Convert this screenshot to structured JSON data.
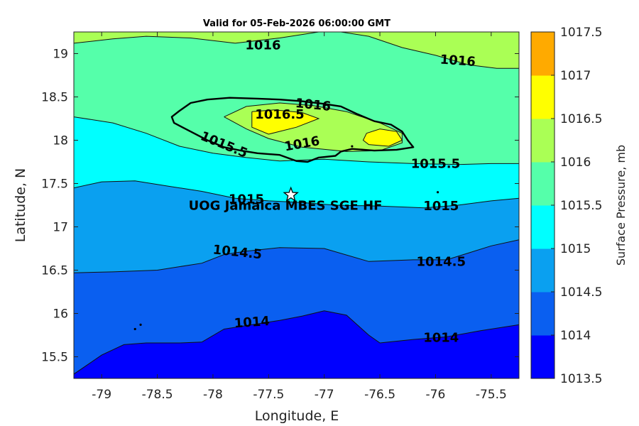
{
  "chart_data": {
    "type": "contour-map",
    "title": "Valid for 05-Feb-2026 06:00:00 GMT",
    "xlabel": "Longitude, E",
    "ylabel": "Latitude, N",
    "colorbar_label": "Surface Pressure, mb",
    "xlim": [
      -79.25,
      -75.25
    ],
    "ylim": [
      15.25,
      19.25
    ],
    "xticks": [
      -79,
      -78.5,
      -78,
      -77.5,
      -77,
      -76.5,
      -76,
      -75.5
    ],
    "yticks": [
      15.5,
      16,
      16.5,
      17,
      17.5,
      18,
      18.5,
      19
    ],
    "levels": [
      1013.5,
      1014,
      1014.5,
      1015,
      1015.5,
      1016,
      1016.5,
      1017,
      1017.5
    ],
    "level_colors": [
      "#0000ff",
      "#0a5ff0",
      "#0aa0f0",
      "#00ffff",
      "#55ffaa",
      "#aaff55",
      "#ffff00",
      "#ffaa00",
      "#ff5500"
    ],
    "contours": [
      {
        "level": 1014,
        "points": [
          [
            -79.25,
            15.3
          ],
          [
            -79.0,
            15.52
          ],
          [
            -78.8,
            15.64
          ],
          [
            -78.6,
            15.66
          ],
          [
            -78.3,
            15.66
          ],
          [
            -78.1,
            15.67
          ],
          [
            -77.9,
            15.82
          ],
          [
            -77.6,
            15.88
          ],
          [
            -77.4,
            15.92
          ],
          [
            -77.2,
            15.97
          ],
          [
            -77.0,
            16.03
          ],
          [
            -76.8,
            15.98
          ],
          [
            -76.6,
            15.75
          ],
          [
            -76.5,
            15.66
          ],
          [
            -76.2,
            15.7
          ],
          [
            -75.9,
            15.73
          ],
          [
            -75.6,
            15.8
          ],
          [
            -75.25,
            15.87
          ]
        ]
      },
      {
        "level": 1014.5,
        "points": [
          [
            -79.25,
            16.47
          ],
          [
            -78.9,
            16.48
          ],
          [
            -78.5,
            16.5
          ],
          [
            -78.1,
            16.58
          ],
          [
            -77.9,
            16.68
          ],
          [
            -77.7,
            16.72
          ],
          [
            -77.4,
            16.76
          ],
          [
            -77.0,
            16.75
          ],
          [
            -76.6,
            16.6
          ],
          [
            -76.2,
            16.62
          ],
          [
            -75.9,
            16.62
          ],
          [
            -75.7,
            16.7
          ],
          [
            -75.5,
            16.78
          ],
          [
            -75.25,
            16.85
          ]
        ]
      },
      {
        "level": 1015,
        "points": [
          [
            -79.25,
            17.45
          ],
          [
            -79.0,
            17.52
          ],
          [
            -78.7,
            17.53
          ],
          [
            -78.4,
            17.47
          ],
          [
            -78.1,
            17.41
          ],
          [
            -77.8,
            17.33
          ],
          [
            -77.5,
            17.3
          ],
          [
            -77.2,
            17.28
          ],
          [
            -76.9,
            17.25
          ],
          [
            -76.5,
            17.24
          ],
          [
            -76.1,
            17.22
          ],
          [
            -75.8,
            17.25
          ],
          [
            -75.5,
            17.3
          ],
          [
            -75.25,
            17.33
          ]
        ]
      },
      {
        "level": 1015.5,
        "points": [
          [
            -79.25,
            18.27
          ],
          [
            -78.9,
            18.2
          ],
          [
            -78.6,
            18.08
          ],
          [
            -78.3,
            17.93
          ],
          [
            -78.0,
            17.85
          ],
          [
            -77.7,
            17.8
          ],
          [
            -77.4,
            17.76
          ],
          [
            -77.0,
            17.78
          ],
          [
            -76.6,
            17.75
          ],
          [
            -76.2,
            17.73
          ],
          [
            -75.8,
            17.72
          ],
          [
            -75.5,
            17.73
          ],
          [
            -75.25,
            17.73
          ]
        ]
      },
      {
        "level": 1016,
        "points": [
          [
            -79.25,
            19.12
          ],
          [
            -78.9,
            19.17
          ],
          [
            -78.6,
            19.2
          ],
          [
            -78.2,
            19.18
          ],
          [
            -77.8,
            19.12
          ],
          [
            -77.4,
            19.18
          ],
          [
            -77.05,
            19.25
          ]
        ]
      },
      {
        "level": 1016,
        "points": [
          [
            -76.85,
            19.25
          ],
          [
            -76.6,
            19.2
          ],
          [
            -76.3,
            19.07
          ],
          [
            -76.0,
            18.98
          ],
          [
            -75.7,
            18.87
          ],
          [
            -75.45,
            18.83
          ],
          [
            -75.25,
            18.83
          ]
        ]
      },
      {
        "level": 1016,
        "points": [
          [
            -77.9,
            18.27
          ],
          [
            -77.7,
            18.39
          ],
          [
            -77.4,
            18.43
          ],
          [
            -77.1,
            18.4
          ],
          [
            -76.8,
            18.33
          ],
          [
            -76.5,
            18.2
          ],
          [
            -76.3,
            18.08
          ],
          [
            -76.3,
            17.97
          ],
          [
            -76.5,
            17.88
          ],
          [
            -76.8,
            17.87
          ],
          [
            -77.2,
            17.92
          ],
          [
            -77.5,
            18.02
          ],
          [
            -77.7,
            18.13
          ],
          [
            -77.9,
            18.27
          ]
        ]
      },
      {
        "level": 1016.5,
        "points": [
          [
            -77.65,
            18.33
          ],
          [
            -77.45,
            18.35
          ],
          [
            -77.2,
            18.32
          ],
          [
            -77.05,
            18.25
          ],
          [
            -77.25,
            18.15
          ],
          [
            -77.5,
            18.07
          ],
          [
            -77.65,
            18.15
          ],
          [
            -77.65,
            18.33
          ]
        ]
      },
      {
        "level": 1016.5,
        "points": [
          [
            -76.62,
            18.08
          ],
          [
            -76.5,
            18.13
          ],
          [
            -76.35,
            18.1
          ],
          [
            -76.3,
            18.0
          ],
          [
            -76.42,
            17.93
          ],
          [
            -76.6,
            17.95
          ],
          [
            -76.65,
            18.0
          ],
          [
            -76.62,
            18.08
          ]
        ]
      }
    ],
    "contour_labels": [
      {
        "text": "1016",
        "x": -77.55,
        "y": 19.1,
        "angle": 0
      },
      {
        "text": "1016",
        "x": -75.8,
        "y": 18.92,
        "angle": 4
      },
      {
        "text": "1016",
        "x": -77.1,
        "y": 18.41,
        "angle": 6
      },
      {
        "text": "1016.5",
        "x": -77.4,
        "y": 18.3,
        "angle": 0
      },
      {
        "text": "1016",
        "x": -77.2,
        "y": 17.96,
        "angle": -10
      },
      {
        "text": "1015.5",
        "x": -77.9,
        "y": 17.95,
        "angle": 22
      },
      {
        "text": "1015.5",
        "x": -76.0,
        "y": 17.73,
        "angle": 0
      },
      {
        "text": "1015",
        "x": -77.7,
        "y": 17.32,
        "angle": 0
      },
      {
        "text": "1015",
        "x": -75.95,
        "y": 17.24,
        "angle": 0
      },
      {
        "text": "1014.5",
        "x": -77.78,
        "y": 16.71,
        "angle": 6
      },
      {
        "text": "1014.5",
        "x": -75.95,
        "y": 16.6,
        "angle": 0
      },
      {
        "text": "1014",
        "x": -77.65,
        "y": 15.9,
        "angle": -4
      },
      {
        "text": "1014",
        "x": -75.95,
        "y": 15.72,
        "angle": 0
      }
    ],
    "site": {
      "name": "UOG Jamaica MBES SGE HF",
      "lon": -77.3,
      "lat": 17.37
    },
    "coastline_jamaica": [
      [
        -78.37,
        18.27
      ],
      [
        -78.3,
        18.34
      ],
      [
        -78.2,
        18.43
      ],
      [
        -78.05,
        18.47
      ],
      [
        -77.85,
        18.49
      ],
      [
        -77.6,
        18.48
      ],
      [
        -77.4,
        18.47
      ],
      [
        -77.2,
        18.45
      ],
      [
        -77.0,
        18.42
      ],
      [
        -76.85,
        18.39
      ],
      [
        -76.7,
        18.3
      ],
      [
        -76.55,
        18.22
      ],
      [
        -76.4,
        18.18
      ],
      [
        -76.3,
        18.1
      ],
      [
        -76.25,
        18.0
      ],
      [
        -76.2,
        17.92
      ],
      [
        -76.35,
        17.89
      ],
      [
        -76.55,
        17.88
      ],
      [
        -76.75,
        17.9
      ],
      [
        -76.85,
        17.87
      ],
      [
        -76.9,
        17.82
      ],
      [
        -77.05,
        17.8
      ],
      [
        -77.15,
        17.75
      ],
      [
        -77.25,
        17.76
      ],
      [
        -77.4,
        17.83
      ],
      [
        -77.6,
        17.85
      ],
      [
        -77.75,
        17.88
      ],
      [
        -77.9,
        17.92
      ],
      [
        -78.05,
        18.0
      ],
      [
        -78.2,
        18.1
      ],
      [
        -78.35,
        18.2
      ],
      [
        -78.37,
        18.27
      ]
    ],
    "small_islands": [
      [
        -78.7,
        15.82
      ],
      [
        -78.65,
        15.87
      ],
      [
        -75.98,
        17.4
      ],
      [
        -76.75,
        17.93
      ]
    ]
  }
}
